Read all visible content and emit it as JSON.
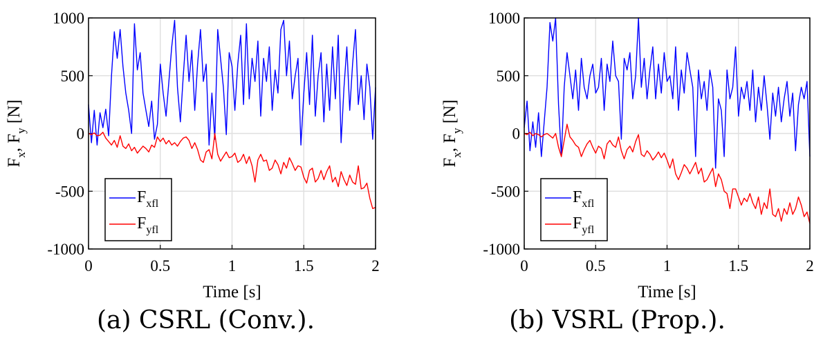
{
  "chart_data": [
    {
      "type": "line",
      "caption": "(a) CSRL (Conv.).",
      "xlabel": "Time [s]",
      "ylabel_parts": {
        "F1": "F",
        "x": "x",
        "sep": ", ",
        "F2": "F",
        "y": "y",
        "unit": " [N]"
      },
      "xlim": [
        0,
        2
      ],
      "ylim": [
        -1000,
        1000
      ],
      "xticks": [
        "0",
        "0.5",
        "1",
        "1.5",
        "2"
      ],
      "yticks": [
        "1000",
        "500",
        "0",
        "-500",
        "-1000"
      ],
      "grid": true,
      "legend_position": "bottom-left",
      "series": [
        {
          "name": "F_xfl",
          "legend_main": "F",
          "legend_sub": "xfl",
          "color": "#0000ff",
          "x": [
            0,
            0.02,
            0.04,
            0.06,
            0.08,
            0.1,
            0.12,
            0.14,
            0.16,
            0.18,
            0.2,
            0.22,
            0.24,
            0.26,
            0.28,
            0.3,
            0.32,
            0.34,
            0.36,
            0.38,
            0.4,
            0.42,
            0.44,
            0.46,
            0.48,
            0.5,
            0.52,
            0.54,
            0.56,
            0.58,
            0.6,
            0.62,
            0.64,
            0.66,
            0.68,
            0.7,
            0.72,
            0.74,
            0.76,
            0.78,
            0.8,
            0.82,
            0.84,
            0.86,
            0.88,
            0.9,
            0.92,
            0.94,
            0.96,
            0.98,
            1.0,
            1.02,
            1.04,
            1.06,
            1.08,
            1.1,
            1.12,
            1.14,
            1.16,
            1.18,
            1.2,
            1.22,
            1.24,
            1.26,
            1.28,
            1.3,
            1.32,
            1.34,
            1.36,
            1.38,
            1.4,
            1.42,
            1.44,
            1.46,
            1.48,
            1.5,
            1.52,
            1.54,
            1.56,
            1.58,
            1.6,
            1.62,
            1.64,
            1.66,
            1.68,
            1.7,
            1.72,
            1.74,
            1.76,
            1.78,
            1.8,
            1.82,
            1.84,
            1.86,
            1.88,
            1.9,
            1.92,
            1.94,
            1.96,
            1.98,
            2.0
          ],
          "y": [
            250,
            -80,
            200,
            -100,
            180,
            50,
            210,
            -20,
            500,
            880,
            650,
            900,
            580,
            350,
            200,
            0,
            950,
            550,
            700,
            350,
            200,
            60,
            280,
            -50,
            80,
            600,
            350,
            150,
            450,
            750,
            980,
            400,
            100,
            500,
            850,
            450,
            720,
            200,
            600,
            900,
            450,
            600,
            -100,
            350,
            -50,
            900,
            650,
            400,
            -10,
            700,
            580,
            200,
            600,
            850,
            250,
            950,
            300,
            650,
            450,
            800,
            150,
            650,
            450,
            750,
            200,
            550,
            350,
            900,
            980,
            500,
            800,
            300,
            500,
            650,
            -100,
            350,
            700,
            250,
            850,
            150,
            500,
            700,
            100,
            600,
            200,
            750,
            300,
            850,
            -80,
            400,
            750,
            200,
            600,
            900,
            250,
            500,
            120,
            600,
            400,
            -50,
            400
          ]
        },
        {
          "name": "F_yfl",
          "legend_main": "F",
          "legend_sub": "yfl",
          "color": "#ff0000",
          "x": [
            0,
            0.02,
            0.04,
            0.06,
            0.08,
            0.1,
            0.12,
            0.14,
            0.16,
            0.18,
            0.2,
            0.22,
            0.24,
            0.26,
            0.28,
            0.3,
            0.32,
            0.34,
            0.36,
            0.38,
            0.4,
            0.42,
            0.44,
            0.46,
            0.48,
            0.5,
            0.52,
            0.54,
            0.56,
            0.58,
            0.6,
            0.62,
            0.64,
            0.66,
            0.68,
            0.7,
            0.72,
            0.74,
            0.76,
            0.78,
            0.8,
            0.82,
            0.84,
            0.86,
            0.88,
            0.9,
            0.92,
            0.94,
            0.96,
            0.98,
            1.0,
            1.02,
            1.04,
            1.06,
            1.08,
            1.1,
            1.12,
            1.14,
            1.16,
            1.18,
            1.2,
            1.22,
            1.24,
            1.26,
            1.28,
            1.3,
            1.32,
            1.34,
            1.36,
            1.38,
            1.4,
            1.42,
            1.44,
            1.46,
            1.48,
            1.5,
            1.52,
            1.54,
            1.56,
            1.58,
            1.6,
            1.62,
            1.64,
            1.66,
            1.68,
            1.7,
            1.72,
            1.74,
            1.76,
            1.78,
            1.8,
            1.82,
            1.84,
            1.86,
            1.88,
            1.9,
            1.92,
            1.94,
            1.96,
            1.98,
            2.0
          ],
          "y": [
            0,
            -10,
            5,
            -20,
            -15,
            10,
            -40,
            -70,
            -100,
            -60,
            -120,
            -20,
            -110,
            -130,
            -90,
            -150,
            -120,
            -170,
            -140,
            -110,
            -130,
            -160,
            -100,
            -120,
            -30,
            -70,
            -40,
            -90,
            -60,
            -100,
            -80,
            -110,
            -70,
            -40,
            -30,
            -60,
            -130,
            -80,
            -140,
            -230,
            -250,
            -160,
            -140,
            -220,
            0,
            -180,
            -240,
            -200,
            -160,
            -210,
            -200,
            -170,
            -250,
            -230,
            -180,
            -260,
            -200,
            -280,
            -420,
            -230,
            -180,
            -240,
            -230,
            -320,
            -300,
            -230,
            -270,
            -350,
            -250,
            -300,
            -210,
            -260,
            -320,
            -280,
            -290,
            -380,
            -430,
            -320,
            -300,
            -420,
            -390,
            -320,
            -400,
            -330,
            -280,
            -420,
            -380,
            -460,
            -330,
            -400,
            -450,
            -360,
            -420,
            -440,
            -280,
            -480,
            -470,
            -430,
            -560,
            -650,
            -640
          ]
        }
      ]
    },
    {
      "type": "line",
      "caption": "(b) VSRL (Prop.).",
      "xlabel": "Time [s]",
      "ylabel_parts": {
        "F1": "F",
        "x": "x",
        "sep": ", ",
        "F2": "F",
        "y": "y",
        "unit": " [N]"
      },
      "xlim": [
        0,
        2
      ],
      "ylim": [
        -1000,
        1000
      ],
      "xticks": [
        "0",
        "0.5",
        "1",
        "1.5",
        "2"
      ],
      "yticks": [
        "1000",
        "500",
        "0",
        "-500",
        "-1000"
      ],
      "grid": true,
      "legend_position": "bottom-left",
      "series": [
        {
          "name": "F_xfl",
          "legend_main": "F",
          "legend_sub": "xfl",
          "color": "#0000ff",
          "x": [
            0,
            0.02,
            0.04,
            0.06,
            0.08,
            0.1,
            0.12,
            0.14,
            0.16,
            0.18,
            0.2,
            0.22,
            0.24,
            0.26,
            0.28,
            0.3,
            0.32,
            0.34,
            0.36,
            0.38,
            0.4,
            0.42,
            0.44,
            0.46,
            0.48,
            0.5,
            0.52,
            0.54,
            0.56,
            0.58,
            0.6,
            0.62,
            0.64,
            0.66,
            0.68,
            0.7,
            0.72,
            0.74,
            0.76,
            0.78,
            0.8,
            0.82,
            0.84,
            0.86,
            0.88,
            0.9,
            0.92,
            0.94,
            0.96,
            0.98,
            1.0,
            1.02,
            1.04,
            1.06,
            1.08,
            1.1,
            1.12,
            1.14,
            1.16,
            1.18,
            1.2,
            1.22,
            1.24,
            1.26,
            1.28,
            1.3,
            1.32,
            1.34,
            1.36,
            1.38,
            1.4,
            1.42,
            1.44,
            1.46,
            1.48,
            1.5,
            1.52,
            1.54,
            1.56,
            1.58,
            1.6,
            1.62,
            1.64,
            1.66,
            1.68,
            1.7,
            1.72,
            1.74,
            1.76,
            1.78,
            1.8,
            1.82,
            1.84,
            1.86,
            1.88,
            1.9,
            1.92,
            1.94,
            1.96,
            1.98,
            2.0
          ],
          "y": [
            50,
            280,
            -150,
            100,
            -120,
            180,
            -200,
            100,
            400,
            960,
            800,
            1000,
            250,
            -200,
            400,
            700,
            500,
            300,
            550,
            200,
            650,
            400,
            300,
            500,
            600,
            350,
            400,
            650,
            200,
            600,
            450,
            800,
            500,
            450,
            -50,
            650,
            550,
            700,
            300,
            500,
            1000,
            400,
            650,
            300,
            550,
            750,
            300,
            600,
            350,
            700,
            450,
            500,
            300,
            750,
            200,
            550,
            350,
            700,
            550,
            400,
            -200,
            550,
            300,
            450,
            200,
            550,
            400,
            -300,
            300,
            200,
            -200,
            550,
            300,
            400,
            750,
            150,
            400,
            300,
            450,
            200,
            550,
            100,
            400,
            200,
            500,
            250,
            -50,
            350,
            150,
            400,
            100,
            300,
            450,
            150,
            350,
            -150,
            250,
            400,
            300,
            450,
            -200
          ]
        },
        {
          "name": "F_yfl",
          "legend_main": "F",
          "legend_sub": "yfl",
          "color": "#ff0000",
          "x": [
            0,
            0.02,
            0.04,
            0.06,
            0.08,
            0.1,
            0.12,
            0.14,
            0.16,
            0.18,
            0.2,
            0.22,
            0.24,
            0.26,
            0.28,
            0.3,
            0.32,
            0.34,
            0.36,
            0.38,
            0.4,
            0.42,
            0.44,
            0.46,
            0.48,
            0.5,
            0.52,
            0.54,
            0.56,
            0.58,
            0.6,
            0.62,
            0.64,
            0.66,
            0.68,
            0.7,
            0.72,
            0.74,
            0.76,
            0.78,
            0.8,
            0.82,
            0.84,
            0.86,
            0.88,
            0.9,
            0.92,
            0.94,
            0.96,
            0.98,
            1.0,
            1.02,
            1.04,
            1.06,
            1.08,
            1.1,
            1.12,
            1.14,
            1.16,
            1.18,
            1.2,
            1.22,
            1.24,
            1.26,
            1.28,
            1.3,
            1.32,
            1.34,
            1.36,
            1.38,
            1.4,
            1.42,
            1.44,
            1.46,
            1.48,
            1.5,
            1.52,
            1.54,
            1.56,
            1.58,
            1.6,
            1.62,
            1.64,
            1.66,
            1.68,
            1.7,
            1.72,
            1.74,
            1.76,
            1.78,
            1.8,
            1.82,
            1.84,
            1.86,
            1.88,
            1.9,
            1.92,
            1.94,
            1.96,
            1.98,
            2.0
          ],
          "y": [
            0,
            -10,
            10,
            -20,
            0,
            -10,
            -30,
            -10,
            0,
            -20,
            -40,
            0,
            -120,
            -200,
            -60,
            80,
            -30,
            -60,
            -100,
            -120,
            -200,
            -140,
            -90,
            -60,
            -120,
            -170,
            -110,
            -130,
            -220,
            -90,
            -60,
            -100,
            -120,
            -30,
            -150,
            -220,
            -140,
            -110,
            -160,
            -70,
            -10,
            -180,
            -200,
            -150,
            -180,
            -230,
            -200,
            -160,
            -210,
            -170,
            -230,
            -300,
            -220,
            -350,
            -400,
            -340,
            -270,
            -300,
            -350,
            -300,
            -250,
            -350,
            -300,
            -420,
            -400,
            -350,
            -300,
            -460,
            -350,
            -400,
            -500,
            -520,
            -650,
            -480,
            -480,
            -550,
            -620,
            -560,
            -590,
            -520,
            -600,
            -650,
            -550,
            -700,
            -600,
            -650,
            -480,
            -700,
            -720,
            -650,
            -760,
            -650,
            -700,
            -600,
            -700,
            -650,
            -550,
            -620,
            -720,
            -680,
            -780
          ]
        }
      ]
    }
  ]
}
